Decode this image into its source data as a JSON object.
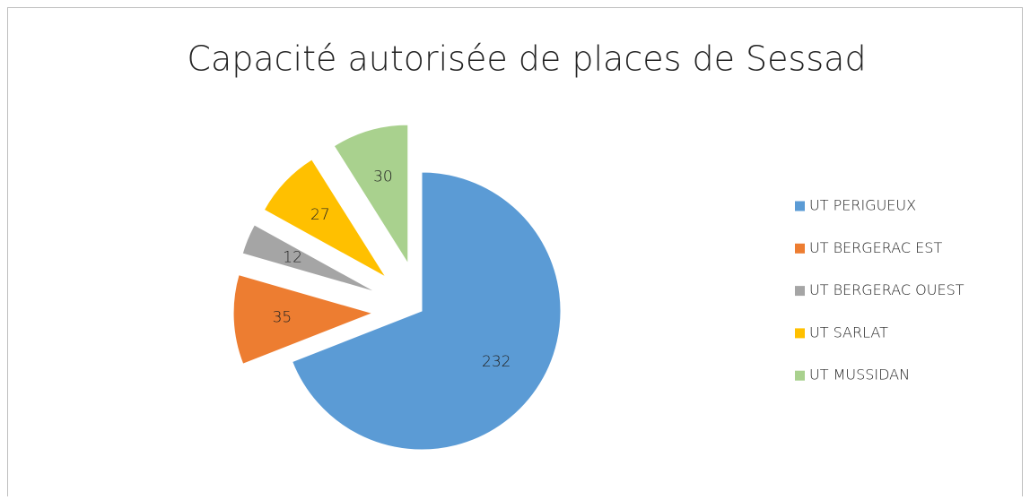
{
  "chart_data": {
    "type": "pie",
    "title": "Capacité autorisée de places de Sessad",
    "categories": [
      "UT PERIGUEUX",
      "UT BERGERAC EST",
      "UT BERGERAC OUEST",
      "UT SARLAT",
      "UT MUSSIDAN"
    ],
    "values": [
      232,
      35,
      12,
      27,
      30
    ],
    "colors": [
      "#5b9bd5",
      "#ed7d31",
      "#a5a5a5",
      "#ffc000",
      "#a9d18e"
    ],
    "legend": "right"
  }
}
